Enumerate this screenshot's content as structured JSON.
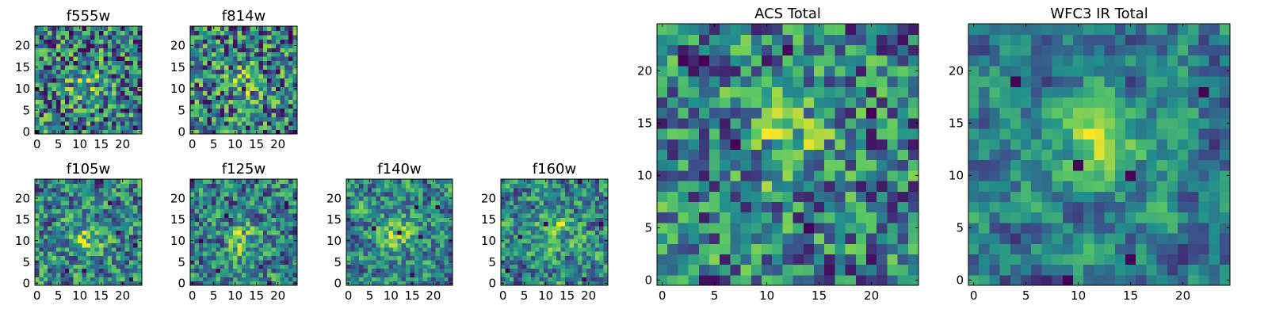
{
  "figure": {
    "panels": [
      {
        "title": "f555w",
        "grid_size": 25,
        "xticks": [
          0,
          5,
          10,
          15,
          20
        ],
        "yticks": [
          0,
          5,
          10,
          15,
          20
        ],
        "peak": [
          11,
          11
        ],
        "seed": 11,
        "smoothness": 0.0,
        "peak_strength": 0.25
      },
      {
        "title": "f814w",
        "grid_size": 25,
        "xticks": [
          0,
          5,
          10,
          15,
          20
        ],
        "yticks": [
          0,
          5,
          10,
          15,
          20
        ],
        "peak": [
          12,
          11
        ],
        "seed": 23,
        "smoothness": 0.0,
        "peak_strength": 0.25
      },
      {
        "title": "f105w",
        "grid_size": 25,
        "xticks": [
          0,
          5,
          10,
          15,
          20
        ],
        "yticks": [
          0,
          5,
          10,
          15,
          20
        ],
        "peak": [
          12,
          11
        ],
        "seed": 37,
        "smoothness": 0.3,
        "peak_strength": 0.3
      },
      {
        "title": "f125w",
        "grid_size": 25,
        "xticks": [
          0,
          5,
          10,
          15,
          20
        ],
        "yticks": [
          0,
          5,
          10,
          15,
          20
        ],
        "peak": [
          12,
          10
        ],
        "seed": 41,
        "smoothness": 0.3,
        "peak_strength": 0.3
      },
      {
        "title": "f140w",
        "grid_size": 25,
        "xticks": [
          0,
          5,
          10,
          15,
          20
        ],
        "yticks": [
          0,
          5,
          10,
          15,
          20
        ],
        "peak": [
          11,
          12
        ],
        "seed": 53,
        "smoothness": 0.4,
        "peak_strength": 0.3
      },
      {
        "title": "f160w",
        "grid_size": 25,
        "xticks": [
          0,
          5,
          10,
          15,
          20
        ],
        "yticks": [
          0,
          5,
          10,
          15,
          20
        ],
        "peak": [
          12,
          12
        ],
        "seed": 67,
        "smoothness": 0.4,
        "peak_strength": 0.3
      },
      {
        "title": "ACS Total",
        "grid_size": 25,
        "xticks": [
          0,
          5,
          10,
          15,
          20
        ],
        "yticks": [
          0,
          5,
          10,
          15,
          20
        ],
        "peak": [
          12,
          13
        ],
        "seed": 79,
        "smoothness": 0.15,
        "peak_strength": 0.3
      },
      {
        "title": "WFC3 IR Total",
        "grid_size": 25,
        "xticks": [
          0,
          5,
          10,
          15,
          20
        ],
        "yticks": [
          0,
          5,
          10,
          15,
          20
        ],
        "peak": [
          12,
          13
        ],
        "seed": 97,
        "smoothness": 0.55,
        "peak_strength": 0.45
      }
    ]
  },
  "chart_data": {
    "type": "heatmap",
    "colormap": "viridis",
    "colormap_stops": [
      "#440154",
      "#3b528b",
      "#21918c",
      "#5ec962",
      "#fde725"
    ],
    "description_free": true,
    "x_range": [
      0,
      24
    ],
    "y_range": [
      0,
      24
    ],
    "panel_titles": [
      "f555w",
      "f814w",
      "f105w",
      "f125w",
      "f140w",
      "f160w",
      "ACS Total",
      "WFC3 IR Total"
    ]
  }
}
